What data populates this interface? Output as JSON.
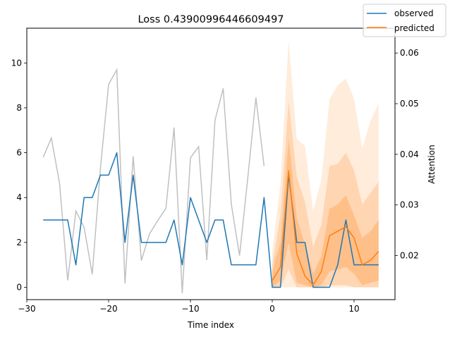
{
  "chart_data": {
    "type": "line",
    "title": "Loss 0.43900996446609497",
    "xlabel": "Time index",
    "ylabel": "",
    "y2label": "Attention",
    "xlim": [
      -30.0,
      15.0
    ],
    "ylim": [
      -0.55,
      11.55
    ],
    "y2lim": [
      0.0113,
      0.0649
    ],
    "xticks": [
      "−30",
      "−20",
      "−10",
      "0",
      "10"
    ],
    "xtick_values": [
      -30,
      -20,
      -10,
      0,
      10
    ],
    "yticks": [
      "0",
      "2",
      "4",
      "6",
      "8",
      "10"
    ],
    "ytick_values": [
      0,
      2,
      4,
      6,
      8,
      10
    ],
    "y2ticks": [
      "0.02",
      "0.03",
      "0.04",
      "0.05",
      "0.06"
    ],
    "y2tick_values": [
      0.02,
      0.03,
      0.04,
      0.05,
      0.06
    ],
    "legend_position": "top-right",
    "grid": false,
    "series": [
      {
        "name": "observed",
        "color": "#1f77b4",
        "x": [
          -28,
          -27,
          -26,
          -25,
          -24,
          -23,
          -22,
          -21,
          -20,
          -19,
          -18,
          -17,
          -16,
          -15,
          -14,
          -13,
          -12,
          -11,
          -10,
          -9,
          -8,
          -7,
          -6,
          -5,
          -4,
          -3,
          -2,
          -1,
          0,
          1,
          2,
          3,
          4,
          5,
          6,
          7,
          8,
          9,
          10,
          11,
          12,
          13
        ],
        "values": [
          3,
          3,
          3,
          3,
          1,
          4,
          4,
          5,
          5,
          6,
          2,
          5,
          2,
          2,
          2,
          2,
          3,
          1,
          4,
          3,
          2,
          3,
          3,
          1,
          1,
          1,
          1,
          4,
          0,
          0,
          5,
          2,
          2,
          0,
          0,
          0,
          1,
          3,
          1,
          1,
          1,
          1
        ]
      },
      {
        "name": "predicted",
        "color": "#ff7f0e",
        "x": [
          0,
          1,
          2,
          3,
          4,
          5,
          6,
          7,
          8,
          9,
          10,
          11,
          12,
          13
        ],
        "values": [
          0.3,
          0.9,
          5.2,
          1.5,
          0.5,
          0.1,
          0.7,
          2.3,
          2.5,
          2.7,
          2.2,
          1.0,
          1.2,
          1.6
        ]
      }
    ],
    "attention": {
      "color": "#c0c0c0",
      "x": [
        -28,
        -27,
        -26,
        -25,
        -24,
        -23,
        -22,
        -21,
        -20,
        -19,
        -18,
        -17,
        -16,
        -15,
        -14,
        -13,
        -12,
        -11,
        -10,
        -9,
        -8,
        -7,
        -6,
        -5,
        -4,
        -3,
        -2,
        -1
      ],
      "values": [
        0.0394,
        0.0432,
        0.0343,
        0.0151,
        0.0288,
        0.0256,
        0.0163,
        0.0373,
        0.0538,
        0.0567,
        0.0145,
        0.0396,
        0.019,
        0.0243,
        0.0269,
        0.0293,
        0.0453,
        0.0126,
        0.0393,
        0.0415,
        0.0191,
        0.0467,
        0.053,
        0.0301,
        0.02,
        0.0352,
        0.0512,
        0.0377
      ]
    },
    "prediction_intervals": {
      "color": "#ff7f0e",
      "x": [
        0,
        1,
        2,
        3,
        4,
        5,
        6,
        7,
        8,
        9,
        10,
        11,
        12,
        13
      ],
      "bands": [
        {
          "opacity": 0.15,
          "lower": [
            0.0,
            0.0,
            0.0,
            0.0,
            0.0,
            0.0,
            0.0,
            0.0,
            0.0,
            0.0,
            0.0,
            0.0,
            0.0,
            0.0
          ],
          "upper": [
            1.6,
            4.6,
            11.0,
            6.6,
            6.3,
            3.4,
            4.8,
            8.4,
            9.0,
            9.3,
            8.4,
            6.2,
            7.4,
            8.2
          ]
        },
        {
          "opacity": 0.2,
          "lower": [
            0.0,
            0.0,
            0.8,
            0.0,
            0.0,
            0.0,
            0.0,
            0.1,
            0.1,
            0.1,
            0.0,
            0.0,
            0.0,
            0.0
          ],
          "upper": [
            1.0,
            3.2,
            8.3,
            4.9,
            3.8,
            1.8,
            2.8,
            5.4,
            5.5,
            6.0,
            5.2,
            3.7,
            4.2,
            4.7
          ]
        },
        {
          "opacity": 0.25,
          "lower": [
            0.0,
            0.3,
            2.0,
            0.2,
            0.1,
            0.0,
            0.1,
            0.7,
            0.8,
            0.9,
            0.6,
            0.1,
            0.2,
            0.3
          ],
          "upper": [
            0.7,
            2.0,
            6.6,
            3.1,
            1.9,
            0.6,
            1.4,
            3.5,
            3.7,
            4.1,
            3.2,
            2.2,
            2.5,
            3.0
          ]
        }
      ]
    }
  }
}
